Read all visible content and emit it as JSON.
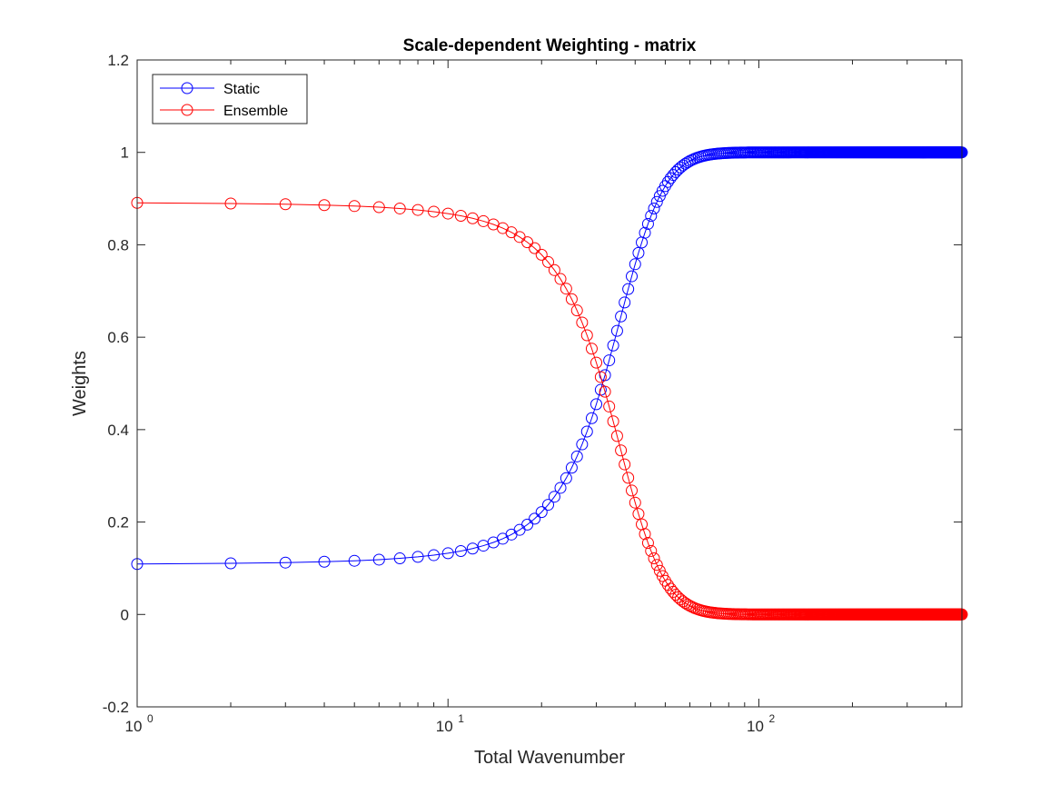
{
  "chart_data": {
    "type": "line",
    "title": "Scale-dependent Weighting - matrix",
    "xlabel": "Total Wavenumber",
    "ylabel": "Weights",
    "xscale": "log",
    "xlim": [
      1,
      450
    ],
    "ylim": [
      -0.2,
      1.2
    ],
    "yticks": [
      -0.2,
      0,
      0.2,
      0.4,
      0.6,
      0.8,
      1,
      1.2
    ],
    "ytick_labels": [
      "-0.2",
      "0",
      "0.2",
      "0.4",
      "0.6",
      "0.8",
      "1",
      "1.2"
    ],
    "xticks": [
      {
        "value": 1,
        "base": "10",
        "exp": "0"
      },
      {
        "value": 10,
        "base": "10",
        "exp": "1"
      },
      {
        "value": 100,
        "base": "10",
        "exp": "2"
      }
    ],
    "grid": false,
    "legend_position": "top-left",
    "x_range": [
      1,
      450
    ],
    "transition_center": 33,
    "transition_width": 7,
    "series": [
      {
        "name": "Static",
        "color": "#0000ff",
        "marker": "circle",
        "low_value": 0.1,
        "high_value": 1.0
      },
      {
        "name": "Ensemble",
        "color": "#ff0000",
        "marker": "circle",
        "low_value": 0.9,
        "high_value": 0.0
      }
    ]
  }
}
